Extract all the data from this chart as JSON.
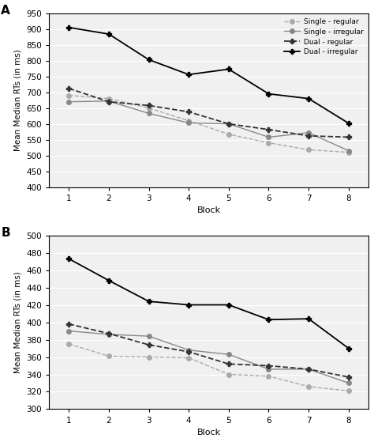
{
  "blocks": [
    1,
    2,
    3,
    4,
    5,
    6,
    7,
    8
  ],
  "panel_A": {
    "single_regular": [
      690,
      680,
      650,
      610,
      567,
      540,
      518,
      510
    ],
    "single_irregular": [
      670,
      672,
      633,
      603,
      600,
      558,
      572,
      515
    ],
    "dual_regular": [
      712,
      670,
      658,
      638,
      600,
      582,
      562,
      558
    ],
    "dual_irregular": [
      905,
      884,
      803,
      756,
      773,
      695,
      680,
      602
    ]
  },
  "panel_B": {
    "single_regular": [
      375,
      361,
      360,
      359,
      340,
      338,
      326,
      321
    ],
    "single_irregular": [
      390,
      386,
      384,
      368,
      363,
      346,
      346,
      330
    ],
    "dual_regular": [
      398,
      387,
      374,
      366,
      352,
      350,
      346,
      337
    ],
    "dual_irregular": [
      473,
      448,
      424,
      420,
      420,
      403,
      404,
      370
    ]
  },
  "legend_labels": [
    "Single - regular",
    "Single - irregular",
    "Dual - regular",
    "Dual - irregular"
  ],
  "ylabel": "Mean Median RTs (in ms)",
  "xlabel": "Block",
  "panel_A_ylim": [
    400,
    950
  ],
  "panel_A_yticks": [
    400,
    450,
    500,
    550,
    600,
    650,
    700,
    750,
    800,
    850,
    900,
    950
  ],
  "panel_B_ylim": [
    300,
    500
  ],
  "panel_B_yticks": [
    300,
    320,
    340,
    360,
    380,
    400,
    420,
    440,
    460,
    480,
    500
  ],
  "colors": {
    "single_regular": "#aaaaaa",
    "single_irregular": "#888888",
    "dual_regular": "#333333",
    "dual_irregular": "#000000"
  },
  "panel_labels": [
    "A",
    "B"
  ],
  "plot_bg": "#f0f0f0"
}
